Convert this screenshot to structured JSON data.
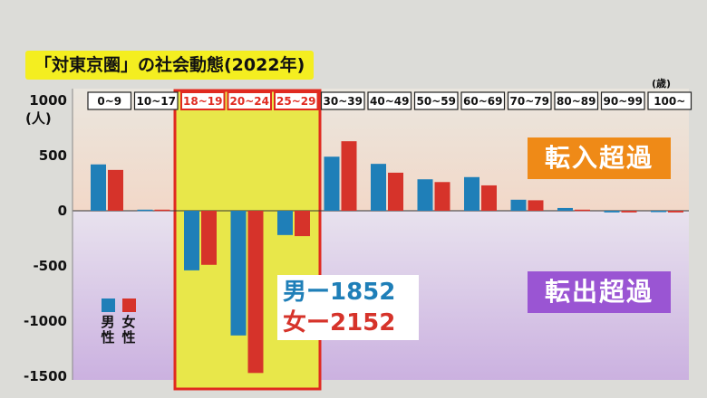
{
  "title": "「対東京圏」の社会動態(2022年)",
  "in_label": "転入超過",
  "out_label": "転出超過",
  "totals": {
    "male": "男ー1852",
    "female": "女ー2152"
  },
  "legend": {
    "male": "男性",
    "female": "女性"
  },
  "colors": {
    "male": "#1f7fb8",
    "female": "#d6332a",
    "highlight": "#e8e74a",
    "highlight_border": "#e02a20"
  },
  "chart_data": {
    "type": "bar",
    "title": "「対東京圏」の社会動態(2022年)",
    "ylabel": "(人)",
    "xlabel_unit": "(歳)",
    "ylim": [
      -1500,
      1000
    ],
    "yticks": [
      1000,
      500,
      0,
      -500,
      -1000,
      -1500
    ],
    "categories": [
      "0~9",
      "10~17",
      "18~19",
      "20~24",
      "25~29",
      "30~39",
      "40~49",
      "50~59",
      "60~69",
      "70~79",
      "80~89",
      "90~99",
      "100~"
    ],
    "highlighted": [
      "18~19",
      "20~24",
      "25~29"
    ],
    "series": [
      {
        "name": "男性",
        "values": [
          420,
          10,
          -540,
          -1130,
          -220,
          490,
          425,
          285,
          305,
          100,
          25,
          -15,
          0
        ]
      },
      {
        "name": "女性",
        "values": [
          370,
          10,
          -490,
          -1470,
          -230,
          630,
          345,
          260,
          230,
          95,
          10,
          -15,
          -15
        ]
      }
    ]
  }
}
